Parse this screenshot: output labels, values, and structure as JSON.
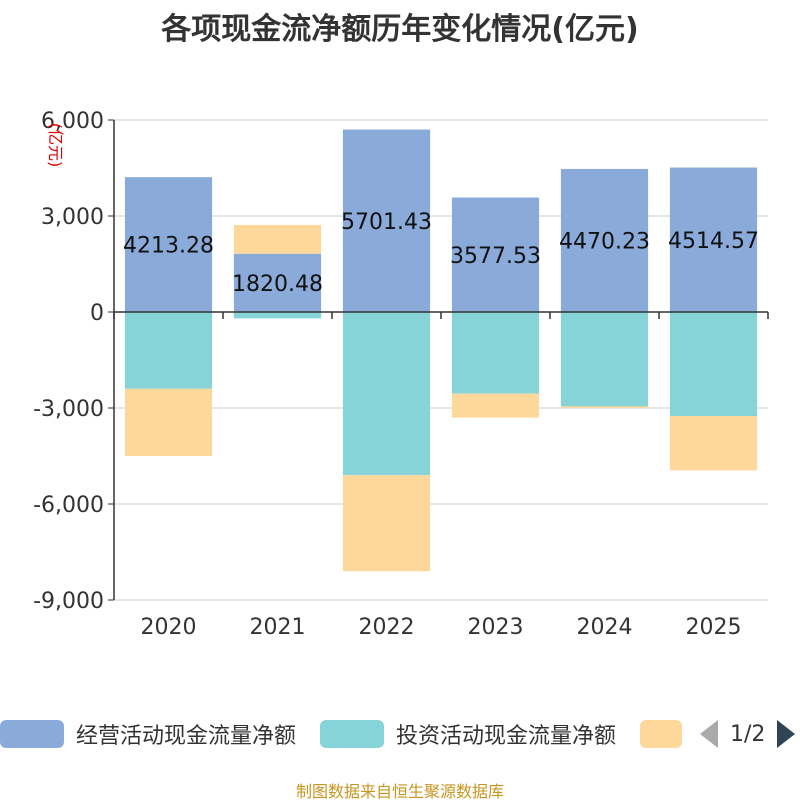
{
  "chart_data": {
    "type": "bar",
    "stacked": true,
    "title": "各项现金流净额历年变化情况(亿元)",
    "ylabel": "(亿元)",
    "ylim": [
      -9000,
      6000
    ],
    "yticks": [
      -9000,
      -6000,
      -3000,
      0,
      3000,
      6000
    ],
    "ytick_labels": [
      "-9,000",
      "-6,000",
      "-3,000",
      "0",
      "3,000",
      "6,000"
    ],
    "categories": [
      "2020",
      "2021",
      "2022",
      "2023",
      "2024",
      "2025"
    ],
    "grid": true,
    "series": [
      {
        "name": "经营活动现金流量净额",
        "color": "#8aabda",
        "values": [
          4213.28,
          1820.48,
          5701.43,
          3577.53,
          4470.23,
          4514.57
        ],
        "labels": [
          "4213.28",
          "1820.48",
          "5701.43",
          "3577.53",
          "4470.23",
          "4514.57"
        ]
      },
      {
        "name": "投资活动现金流量净额",
        "color": "#86d4d8",
        "values": [
          -2400,
          -200,
          -5100,
          -2550,
          -2950,
          -3250
        ]
      },
      {
        "name": "",
        "color": "#fed89a",
        "values": [
          -2100,
          900,
          -3000,
          -750,
          -50,
          -1700
        ]
      }
    ]
  },
  "legend": {
    "items": [
      "经营活动现金流量净额",
      "投资活动现金流量净额",
      ""
    ],
    "page": "1/2"
  },
  "source": "制图数据来自恒生聚源数据库"
}
